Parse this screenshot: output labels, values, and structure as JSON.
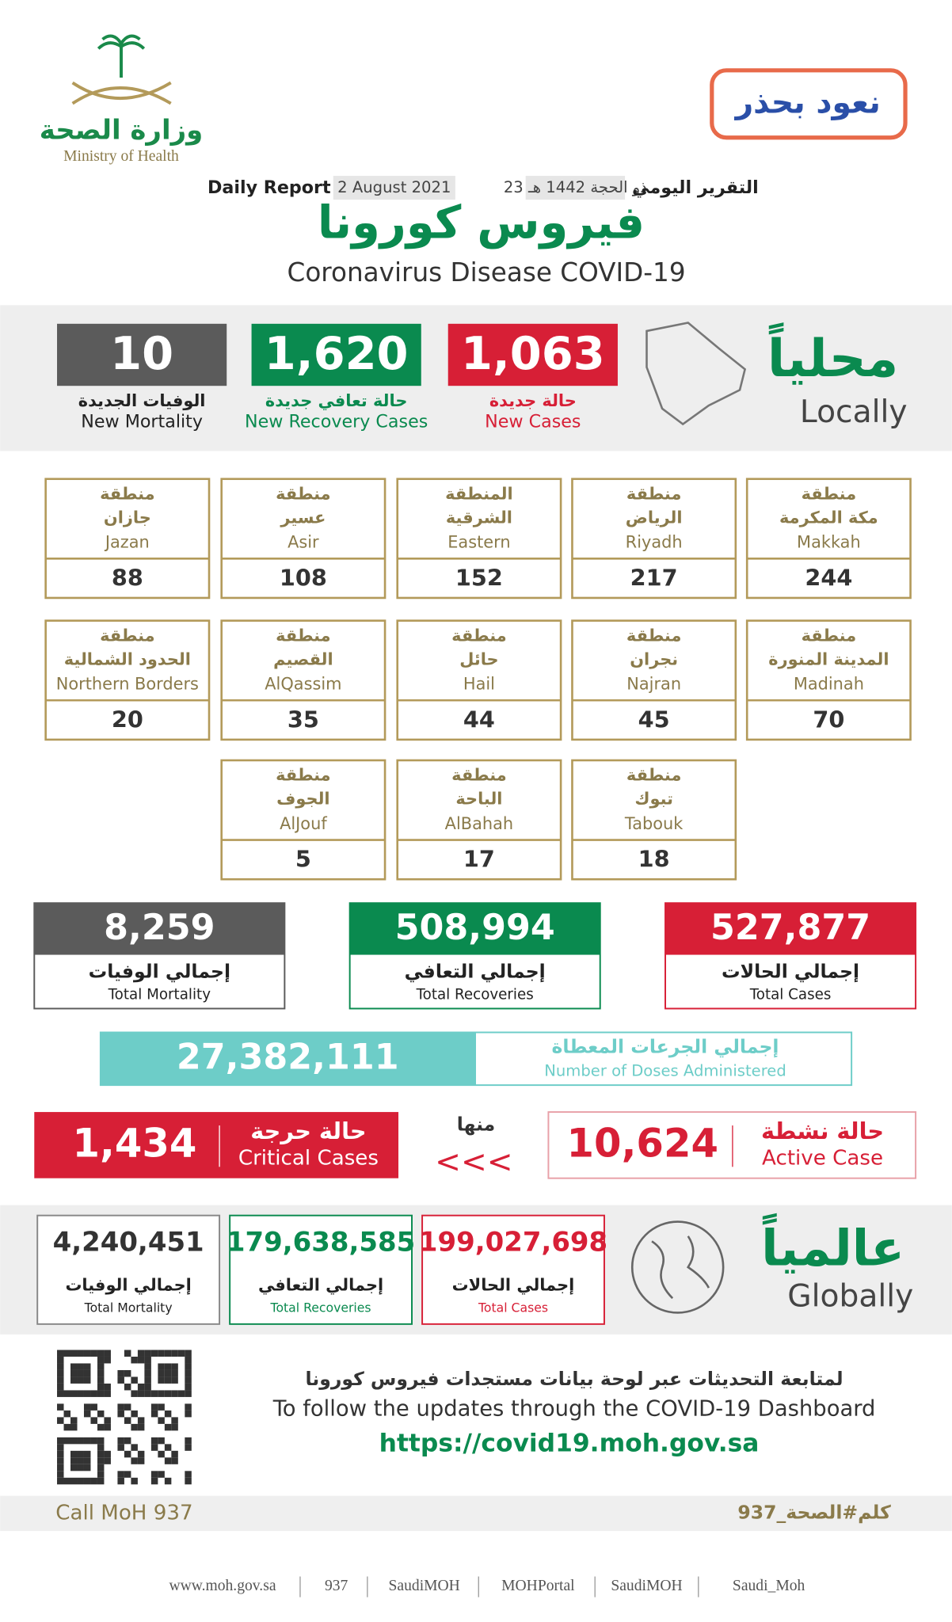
{
  "header": {
    "ministry_ar": "وزارة الصحة",
    "ministry_en": "Ministry of Health",
    "slogan": "نعود بحذر",
    "report_ar": "التقرير اليومي",
    "date_hijri": "23 ذو الحجة 1442 هـ",
    "date": "2 August 2021",
    "report_en": "Daily Report",
    "title_ar": "فيروس كورونا",
    "title_en": "Coronavirus Disease COVID-19"
  },
  "local": {
    "label_ar": "محلياً",
    "label_en": "Locally",
    "stats": [
      {
        "value": "1,063",
        "ar": "حالة جديدة",
        "en": "New Cases"
      },
      {
        "value": "1,620",
        "ar": "حالة تعافي جديدة",
        "en": "New Recovery Cases"
      },
      {
        "value": "10",
        "ar": "الوفيات الجديدة",
        "en": "New Mortality"
      }
    ]
  },
  "regions": [
    {
      "prefix": "منطقة",
      "ar": "مكة المكرمة",
      "en": "Makkah",
      "value": "244"
    },
    {
      "prefix": "منطقة",
      "ar": "الرياض",
      "en": "Riyadh",
      "value": "217"
    },
    {
      "prefix": "المنطقة",
      "ar": "الشرقية",
      "en": "Eastern",
      "value": "152"
    },
    {
      "prefix": "منطقة",
      "ar": "عسير",
      "en": "Asir",
      "value": "108"
    },
    {
      "prefix": "منطقة",
      "ar": "جازان",
      "en": "Jazan",
      "value": "88"
    },
    {
      "prefix": "منطقة",
      "ar": "المدينة المنورة",
      "en": "Madinah",
      "value": "70"
    },
    {
      "prefix": "منطقة",
      "ar": "نجران",
      "en": "Najran",
      "value": "45"
    },
    {
      "prefix": "منطقة",
      "ar": "حائل",
      "en": "Hail",
      "value": "44"
    },
    {
      "prefix": "منطقة",
      "ar": "القصيم",
      "en": "AlQassim",
      "value": "35"
    },
    {
      "prefix": "منطقة",
      "ar": "الحدود الشمالية",
      "en": "Northern Borders",
      "value": "20"
    },
    {
      "prefix": "منطقة",
      "ar": "تبوك",
      "en": "Tabouk",
      "value": "18"
    },
    {
      "prefix": "منطقة",
      "ar": "الباحة",
      "en": "AlBahah",
      "value": "17"
    },
    {
      "prefix": "منطقة",
      "ar": "الجوف",
      "en": "AlJouf",
      "value": "5"
    }
  ],
  "totals": [
    {
      "value": "527,877",
      "ar": "إجمالي الحالات",
      "en": "Total Cases"
    },
    {
      "value": "508,994",
      "ar": "إجمالي التعافي",
      "en": "Total Recoveries"
    },
    {
      "value": "8,259",
      "ar": "إجمالي الوفيات",
      "en": "Total Mortality"
    }
  ],
  "doses": {
    "ar": "إجمالي الجرعات المعطاة",
    "en": "Number of Doses Administered",
    "value": "27,382,111"
  },
  "active": {
    "ar": "حالة نشطة",
    "en": "Active Case",
    "value": "10,624"
  },
  "of_which": "منها",
  "arrows": "<<<",
  "critical": {
    "ar": "حالة حرجة",
    "en": "Critical Cases",
    "value": "1,434"
  },
  "global": {
    "label_ar": "عالمياً",
    "label_en": "Globally",
    "stats": [
      {
        "value": "199,027,698",
        "ar": "إجمالي الحالات",
        "en": "Total Cases"
      },
      {
        "value": "179,638,585",
        "ar": "إجمالي التعافي",
        "en": "Total Recoveries"
      },
      {
        "value": "4,240,451",
        "ar": "إجمالي الوفيات",
        "en": "Total Mortality"
      }
    ]
  },
  "footer": {
    "follow_ar": "لمتابعة التحديثات عبر لوحة بيانات مستجدات فيروس كورونا",
    "follow_en": "To follow the updates through the COVID-19 Dashboard",
    "url": "https://covid19.moh.gov.sa",
    "call": "Call MoH 937",
    "hashtag": "كلم#الصحة_937",
    "links": [
      "www.moh.gov.sa",
      "937",
      "SaudiMOH",
      "MOHPortal",
      "SaudiMOH",
      "Saudi_Moh"
    ]
  }
}
